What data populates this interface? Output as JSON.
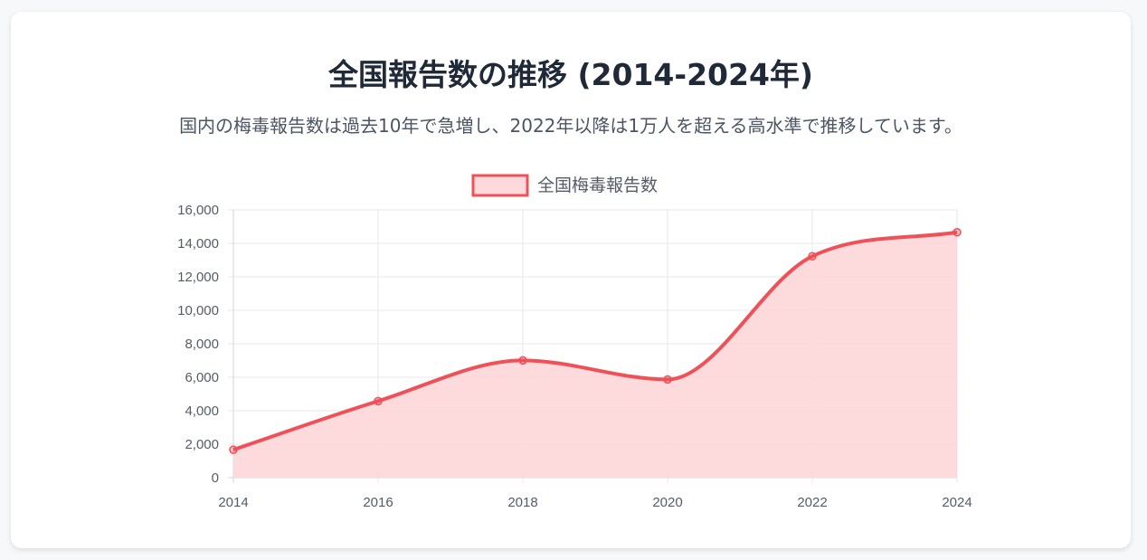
{
  "header": {
    "title": "全国報告数の推移 (2014-2024年)",
    "subtitle": "国内の梅毒報告数は過去10年で急増し、2022年以降は1万人を超える高水準で推移しています。"
  },
  "colors": {
    "line": "#ef5158",
    "fill": "#fdd9db",
    "grid": "#e5e7eb",
    "axis": "#d1d5db"
  },
  "chart_data": {
    "type": "area",
    "title": "全国報告数の推移 (2014-2024年)",
    "subtitle": "国内の梅毒報告数は過去10年で急増し、2022年以降は1万人を超える高水準で推移しています。",
    "x": [
      "2014",
      "2016",
      "2018",
      "2020",
      "2022",
      "2024"
    ],
    "series": [
      {
        "name": "全国梅毒報告数",
        "values": [
          1671,
          4575,
          7007,
          5867,
          13228,
          14663
        ]
      }
    ],
    "ylim": [
      0,
      16000
    ],
    "yticks": [
      "0",
      "2,000",
      "4,000",
      "6,000",
      "8,000",
      "10,000",
      "12,000",
      "14,000",
      "16,000"
    ],
    "xlabel": "",
    "ylabel": "",
    "grid": true,
    "legend": "top-center",
    "curve": "smooth"
  }
}
